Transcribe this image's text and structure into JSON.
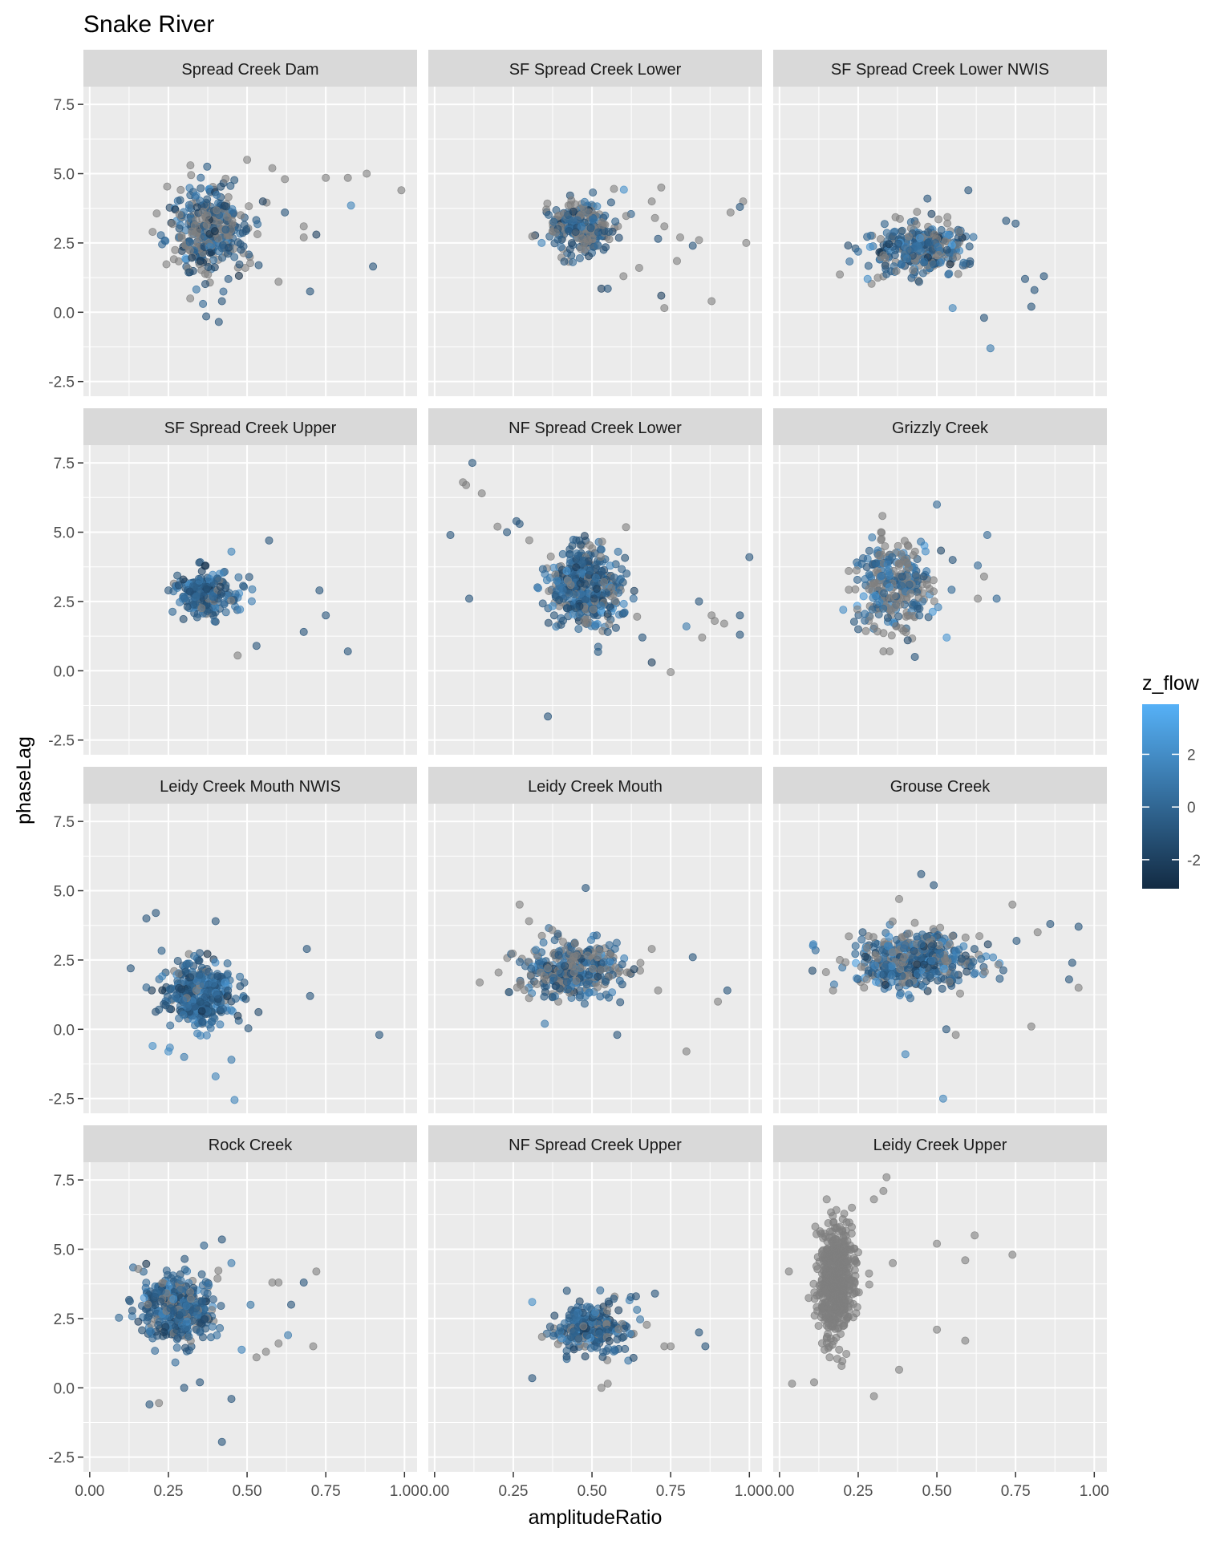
{
  "chart_data": {
    "type": "scatter",
    "title": "Snake River",
    "xlabel": "amplitudeRatio",
    "ylabel": "phaseLag",
    "xlim": [
      -0.02,
      1.04
    ],
    "ylim": [
      -3.03,
      8.14
    ],
    "x_ticks": [
      "0.00",
      "0.25",
      "0.50",
      "0.75",
      "1.00"
    ],
    "x_tick_values": [
      0,
      0.25,
      0.5,
      0.75,
      1.0
    ],
    "y_ticks": [
      "-2.5",
      "0.0",
      "2.5",
      "5.0",
      "7.5"
    ],
    "y_tick_values": [
      -2.5,
      0,
      2.5,
      5,
      7.5
    ],
    "grid": true,
    "legend": {
      "title": "z_flow",
      "placement": "right",
      "labels": [
        "2",
        "0",
        "-2"
      ],
      "label_values": [
        2,
        0,
        -2
      ],
      "range": [
        -3.1,
        3.9
      ],
      "low_color": "#132B43",
      "high_color": "#56B1F7",
      "na_color": "#7F7F7F"
    },
    "point_alpha": 0.6,
    "note": "Each panel: dense cluster summarised by mean/sd/n/share of missing z_flow, plus individually read points [amplitudeRatio, phaseLag, z_flow|null].",
    "panels": [
      {
        "name": "Spread Creek Dam",
        "cluster": {
          "mx": 0.38,
          "my": 2.9,
          "sx": 0.06,
          "sy": 0.8,
          "n": 350,
          "na": 0.4,
          "mz": -0.5
        },
        "points": [
          [
            0.58,
            5.2,
            null
          ],
          [
            0.62,
            4.8,
            null
          ],
          [
            0.75,
            4.85,
            null
          ],
          [
            0.82,
            4.85,
            null
          ],
          [
            0.88,
            5.0,
            null
          ],
          [
            0.99,
            4.4,
            null
          ],
          [
            0.83,
            3.85,
            1.5
          ],
          [
            0.9,
            1.65,
            -1
          ],
          [
            0.7,
            0.75,
            -1
          ],
          [
            0.6,
            1.1,
            null
          ],
          [
            0.55,
            4.0,
            -2
          ],
          [
            0.62,
            3.6,
            -1
          ],
          [
            0.68,
            3.1,
            null
          ],
          [
            0.72,
            2.8,
            -2
          ],
          [
            0.68,
            2.7,
            null
          ],
          [
            0.41,
            -0.35,
            -1
          ],
          [
            0.37,
            -0.15,
            -1
          ],
          [
            0.36,
            0.3,
            0
          ],
          [
            0.42,
            0.4,
            -1
          ],
          [
            0.2,
            2.9,
            null
          ],
          [
            0.23,
            2.45,
            0
          ],
          [
            0.5,
            5.5,
            null
          ],
          [
            0.32,
            5.3,
            null
          ]
        ]
      },
      {
        "name": "SF Spread Creek Lower",
        "cluster": {
          "mx": 0.47,
          "my": 3.0,
          "sx": 0.05,
          "sy": 0.5,
          "n": 250,
          "na": 0.45,
          "mz": -0.4
        },
        "points": [
          [
            0.57,
            4.45,
            null
          ],
          [
            0.72,
            4.5,
            null
          ],
          [
            0.69,
            4.0,
            null
          ],
          [
            0.7,
            3.4,
            null
          ],
          [
            0.73,
            3.1,
            null
          ],
          [
            0.78,
            2.7,
            null
          ],
          [
            0.77,
            1.85,
            null
          ],
          [
            0.71,
            2.65,
            -1
          ],
          [
            0.82,
            2.4,
            -1
          ],
          [
            0.84,
            2.6,
            null
          ],
          [
            0.98,
            4.0,
            null
          ],
          [
            0.97,
            3.8,
            -1
          ],
          [
            0.94,
            3.6,
            null
          ],
          [
            0.99,
            2.5,
            null
          ],
          [
            0.72,
            0.6,
            -2
          ],
          [
            0.73,
            0.15,
            null
          ],
          [
            0.88,
            0.4,
            null
          ],
          [
            0.6,
            1.3,
            null
          ],
          [
            0.65,
            1.6,
            null
          ],
          [
            0.53,
            0.85,
            -2
          ],
          [
            0.55,
            0.85,
            -1
          ],
          [
            0.34,
            2.5,
            1.5
          ]
        ]
      },
      {
        "name": "SF Spread Creek Lower NWIS",
        "cluster": {
          "mx": 0.45,
          "my": 2.3,
          "sx": 0.08,
          "sy": 0.5,
          "n": 300,
          "na": 0.3,
          "mz": 0.0
        },
        "points": [
          [
            0.6,
            4.4,
            -1
          ],
          [
            0.47,
            4.1,
            -1
          ],
          [
            0.78,
            1.2,
            -1
          ],
          [
            0.8,
            0.2,
            -1
          ],
          [
            0.81,
            0.8,
            -1
          ],
          [
            0.67,
            -1.3,
            1
          ],
          [
            0.65,
            -0.2,
            -1
          ],
          [
            0.84,
            1.3,
            -1
          ],
          [
            0.28,
            1.2,
            2
          ],
          [
            0.55,
            0.15,
            1.5
          ],
          [
            0.75,
            3.2,
            -1
          ],
          [
            0.72,
            3.3,
            -1
          ]
        ]
      },
      {
        "name": "SF Spread Creek Upper",
        "cluster": {
          "mx": 0.37,
          "my": 2.8,
          "sx": 0.05,
          "sy": 0.4,
          "n": 200,
          "na": 0.1,
          "mz": -0.3
        },
        "points": [
          [
            0.57,
            4.7,
            -1
          ],
          [
            0.82,
            0.7,
            -1
          ],
          [
            0.47,
            0.55,
            null
          ],
          [
            0.25,
            2.9,
            -1
          ],
          [
            0.73,
            2.9,
            -1
          ],
          [
            0.75,
            2.0,
            -1
          ],
          [
            0.68,
            1.4,
            -1
          ],
          [
            0.53,
            0.9,
            -1
          ],
          [
            0.45,
            4.3,
            1.5
          ]
        ]
      },
      {
        "name": "NF Spread Creek Lower",
        "cluster": {
          "mx": 0.48,
          "my": 3.0,
          "sx": 0.06,
          "sy": 0.7,
          "n": 400,
          "na": 0.2,
          "mz": -0.2
        },
        "points": [
          [
            0.12,
            7.5,
            -1
          ],
          [
            0.09,
            6.8,
            null
          ],
          [
            0.1,
            6.7,
            null
          ],
          [
            0.15,
            6.4,
            null
          ],
          [
            0.05,
            4.9,
            -1
          ],
          [
            0.2,
            5.2,
            null
          ],
          [
            0.26,
            5.4,
            -1
          ],
          [
            0.27,
            5.3,
            -1
          ],
          [
            0.23,
            5.0,
            -1
          ],
          [
            0.11,
            2.6,
            -1
          ],
          [
            0.36,
            -1.65,
            -1
          ],
          [
            1.0,
            4.1,
            -1
          ],
          [
            0.88,
            2.0,
            null
          ],
          [
            0.85,
            1.2,
            null
          ],
          [
            0.97,
            1.3,
            -1
          ],
          [
            0.97,
            2.0,
            -1
          ],
          [
            0.75,
            -0.05,
            null
          ],
          [
            0.69,
            0.3,
            -2
          ],
          [
            0.92,
            1.7,
            null
          ],
          [
            0.89,
            1.8,
            null
          ],
          [
            0.84,
            2.5,
            -1
          ],
          [
            0.8,
            1.6,
            1
          ],
          [
            0.55,
            1.4,
            -1
          ],
          [
            0.66,
            1.2,
            -1
          ],
          [
            0.46,
            4.7,
            -1
          ]
        ]
      },
      {
        "name": "Grizzly Creek",
        "cluster": {
          "mx": 0.37,
          "my": 3.0,
          "sx": 0.06,
          "sy": 0.8,
          "n": 300,
          "na": 0.45,
          "mz": 0.3
        },
        "points": [
          [
            0.5,
            6.0,
            0
          ],
          [
            0.66,
            4.9,
            0
          ],
          [
            0.55,
            4.0,
            -1
          ],
          [
            0.63,
            3.8,
            0
          ],
          [
            0.65,
            3.4,
            null
          ],
          [
            0.69,
            2.6,
            0
          ],
          [
            0.63,
            2.6,
            null
          ],
          [
            0.25,
            1.5,
            -1
          ],
          [
            0.43,
            0.5,
            -1
          ],
          [
            0.33,
            0.7,
            null
          ],
          [
            0.35,
            0.7,
            null
          ],
          [
            0.22,
            3.6,
            null
          ]
        ]
      },
      {
        "name": "Leidy Creek Mouth NWIS",
        "cluster": {
          "mx": 0.35,
          "my": 1.3,
          "sx": 0.06,
          "sy": 0.6,
          "n": 350,
          "na": 0.05,
          "mz": -0.2
        },
        "points": [
          [
            0.18,
            4.0,
            -1
          ],
          [
            0.21,
            4.2,
            -1
          ],
          [
            0.4,
            3.9,
            -1
          ],
          [
            0.69,
            2.9,
            -1
          ],
          [
            0.92,
            -0.2,
            -1
          ],
          [
            0.46,
            -2.55,
            1.5
          ],
          [
            0.4,
            -1.7,
            1.5
          ],
          [
            0.2,
            -0.6,
            2
          ],
          [
            0.45,
            -1.1,
            1
          ],
          [
            0.13,
            2.2,
            -1
          ],
          [
            0.7,
            1.2,
            -1
          ],
          [
            0.25,
            -0.8,
            2
          ],
          [
            0.3,
            -1.0,
            1
          ]
        ]
      },
      {
        "name": "Leidy Creek Mouth",
        "cluster": {
          "mx": 0.43,
          "my": 2.1,
          "sx": 0.08,
          "sy": 0.5,
          "n": 350,
          "na": 0.4,
          "mz": -0.3
        },
        "points": [
          [
            0.48,
            5.1,
            -1
          ],
          [
            0.27,
            4.5,
            null
          ],
          [
            0.3,
            3.9,
            null
          ],
          [
            0.82,
            2.6,
            -1
          ],
          [
            0.93,
            1.4,
            -1
          ],
          [
            0.9,
            1.0,
            null
          ],
          [
            0.8,
            -0.8,
            null
          ],
          [
            0.58,
            -0.2,
            -1
          ],
          [
            0.71,
            1.4,
            null
          ],
          [
            0.35,
            0.2,
            1
          ],
          [
            0.69,
            2.9,
            null
          ]
        ]
      },
      {
        "name": "Grouse Creek",
        "cluster": {
          "mx": 0.43,
          "my": 2.5,
          "sx": 0.1,
          "sy": 0.5,
          "n": 450,
          "na": 0.3,
          "mz": 0.0
        },
        "points": [
          [
            0.45,
            5.6,
            -1
          ],
          [
            0.49,
            5.2,
            -1
          ],
          [
            0.38,
            4.7,
            null
          ],
          [
            0.74,
            4.5,
            null
          ],
          [
            0.8,
            0.1,
            null
          ],
          [
            0.95,
            3.7,
            -1
          ],
          [
            0.86,
            3.8,
            -1
          ],
          [
            0.93,
            2.4,
            -1
          ],
          [
            0.95,
            1.5,
            null
          ],
          [
            0.92,
            1.8,
            -1
          ],
          [
            0.52,
            -2.5,
            1.5
          ],
          [
            0.4,
            -0.9,
            1.5
          ],
          [
            0.56,
            -0.2,
            null
          ],
          [
            0.53,
            0.0,
            -1
          ],
          [
            0.17,
            1.4,
            null
          ],
          [
            0.82,
            3.5,
            null
          ]
        ]
      },
      {
        "name": "Rock Creek",
        "cluster": {
          "mx": 0.28,
          "my": 2.9,
          "sx": 0.06,
          "sy": 0.65,
          "n": 400,
          "na": 0.15,
          "mz": -0.3
        },
        "points": [
          [
            0.42,
            5.35,
            -1
          ],
          [
            0.45,
            4.5,
            1
          ],
          [
            0.72,
            4.2,
            null
          ],
          [
            0.68,
            3.8,
            -1
          ],
          [
            0.58,
            3.8,
            null
          ],
          [
            0.6,
            3.8,
            null
          ],
          [
            0.64,
            3.0,
            -1
          ],
          [
            0.63,
            1.9,
            1
          ],
          [
            0.6,
            1.6,
            null
          ],
          [
            0.71,
            1.5,
            null
          ],
          [
            0.53,
            1.1,
            null
          ],
          [
            0.56,
            1.3,
            null
          ],
          [
            0.42,
            -1.95,
            -1
          ],
          [
            0.19,
            -0.6,
            -1
          ],
          [
            0.22,
            -0.55,
            null
          ],
          [
            0.3,
            0.0,
            -1
          ],
          [
            0.45,
            -0.4,
            -1
          ],
          [
            0.35,
            0.2,
            -1
          ]
        ]
      },
      {
        "name": "NF Spread Creek Upper",
        "cluster": {
          "mx": 0.5,
          "my": 2.1,
          "sx": 0.06,
          "sy": 0.45,
          "n": 250,
          "na": 0.15,
          "mz": -0.2
        },
        "points": [
          [
            0.31,
            0.35,
            -1
          ],
          [
            0.31,
            3.1,
            2
          ],
          [
            0.84,
            2.0,
            -1
          ],
          [
            0.86,
            1.5,
            -1
          ],
          [
            0.75,
            1.5,
            null
          ],
          [
            0.73,
            1.5,
            null
          ],
          [
            0.7,
            3.4,
            -1
          ],
          [
            0.53,
            0.0,
            null
          ],
          [
            0.55,
            0.15,
            null
          ],
          [
            0.42,
            3.5,
            -1
          ]
        ]
      },
      {
        "name": "Leidy Creek Upper",
        "cluster": {
          "mx": 0.18,
          "my": 3.8,
          "sx": 0.03,
          "sy": 1.0,
          "n": 500,
          "na": 1.0,
          "mz": 0.0
        },
        "points": [
          [
            0.34,
            7.6,
            null
          ],
          [
            0.33,
            7.1,
            null
          ],
          [
            0.3,
            6.8,
            null
          ],
          [
            0.15,
            6.8,
            null
          ],
          [
            0.23,
            6.5,
            null
          ],
          [
            0.62,
            5.5,
            null
          ],
          [
            0.59,
            4.6,
            null
          ],
          [
            0.74,
            4.8,
            null
          ],
          [
            0.5,
            5.2,
            null
          ],
          [
            0.5,
            2.1,
            null
          ],
          [
            0.59,
            1.7,
            null
          ],
          [
            0.38,
            0.65,
            null
          ],
          [
            0.04,
            0.15,
            null
          ],
          [
            0.11,
            0.2,
            null
          ],
          [
            0.3,
            -0.3,
            null
          ],
          [
            0.03,
            4.2,
            null
          ],
          [
            0.36,
            4.5,
            null
          ]
        ]
      }
    ]
  }
}
